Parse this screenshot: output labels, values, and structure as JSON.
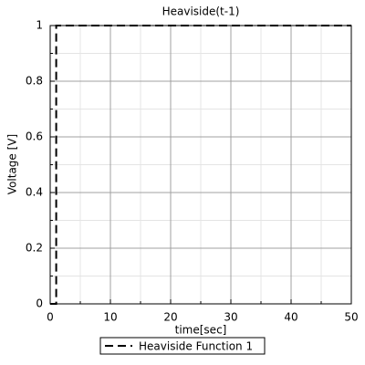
{
  "chart_data": {
    "type": "line",
    "title": "Heaviside(t-1)",
    "x_label": "time[sec]",
    "y_label": "Voltage [V]",
    "x": [
      0,
      1,
      1,
      50
    ],
    "series": [
      {
        "name": "Heaviside Function 1",
        "color": "#000000",
        "values": [
          0,
          0,
          1,
          1
        ]
      }
    ],
    "xlim": [
      0,
      50
    ],
    "xticks": [
      0,
      10,
      20,
      30,
      40,
      50
    ],
    "ylim": [
      0,
      1
    ],
    "yticks": [
      0,
      0.2,
      0.4,
      0.6,
      0.8,
      1
    ],
    "grid": true,
    "legend": "bottom"
  }
}
